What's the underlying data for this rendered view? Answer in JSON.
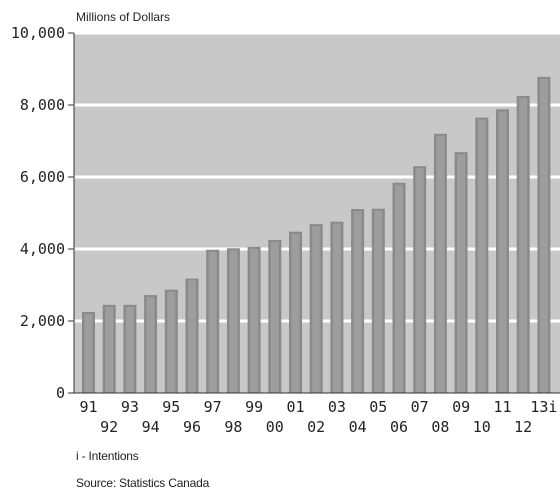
{
  "chart_data": {
    "type": "bar",
    "ylabel": "Millions of Dollars",
    "ylim": [
      0,
      10000
    ],
    "yticks": [
      "0",
      "2,000",
      "4,000",
      "6,000",
      "8,000",
      "10,000"
    ],
    "ytick_values": [
      0,
      2000,
      4000,
      6000,
      8000,
      10000
    ],
    "categories": [
      "91",
      "92",
      "93",
      "94",
      "95",
      "96",
      "97",
      "98",
      "99",
      "00",
      "01",
      "02",
      "03",
      "04",
      "05",
      "06",
      "07",
      "08",
      "09",
      "10",
      "11",
      "12",
      "13i"
    ],
    "values": [
      2250,
      2450,
      2450,
      2720,
      2870,
      3180,
      3980,
      4020,
      4060,
      4250,
      4480,
      4690,
      4760,
      5110,
      5120,
      5840,
      6300,
      7200,
      6690,
      7650,
      7880,
      8250,
      8780
    ],
    "grid": true,
    "legend": "none"
  },
  "notes": {
    "intentions": "i - Intentions",
    "source": "Source: Statistics Canada"
  },
  "colors": {
    "plot_background": "#c8c8c8",
    "bar_fill": "#8a8a8a",
    "bar_shade": "#9d9d9d",
    "gridline": "#ffffff"
  }
}
